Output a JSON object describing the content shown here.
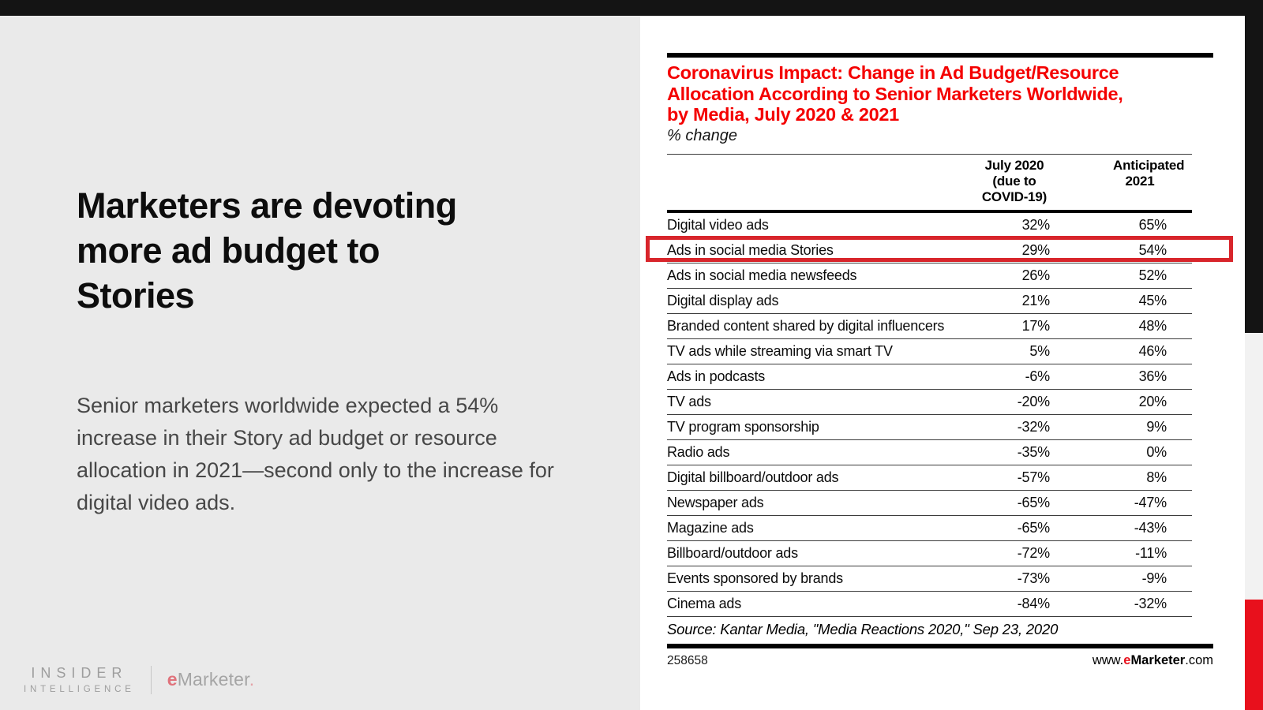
{
  "slide": {
    "headline": "Marketers are devoting\nmore ad budget to\nStories",
    "body": "Senior marketers worldwide expected a 54% increase in their Story ad budget or resource allocation in 2021—second only to the increase for digital video ads.",
    "logo": {
      "line1": "INSIDER",
      "line2": "INTELLIGENCE",
      "emarketer_e": "e",
      "emarketer_rest": "Marketer",
      "emarketer_period": "."
    }
  },
  "chart": {
    "title": "Coronavirus Impact: Change in Ad Budget/Resource\nAllocation According to Senior Marketers Worldwide,\nby Media, July 2020 & 2021",
    "subtitle": "% change",
    "header": {
      "col1": "July 2020\n(due to\nCOVID-19)",
      "col2": "Anticipated\n2021"
    },
    "source": "Source: Kantar Media, \"Media Reactions 2020,\" Sep 23, 2020",
    "chart_id": "258658",
    "site": {
      "www": "www.",
      "e": "e",
      "marketer": "Marketer",
      "com": ".com"
    },
    "accent_red": "#f40000",
    "highlight_red": "#d8252b"
  },
  "chart_data": {
    "type": "table",
    "title": "Coronavirus Impact: Change in Ad Budget/Resource Allocation According to Senior Marketers Worldwide, by Media, July 2020 & 2021",
    "subtitle": "% change",
    "unit": "% change",
    "columns": [
      "Media",
      "July 2020 (due to COVID-19)",
      "Anticipated 2021"
    ],
    "highlighted_row": "Ads in social media Stories",
    "rows": [
      {
        "label": "Digital video ads",
        "july_2020": "32%",
        "anticipated_2021": "65%",
        "highlight": false
      },
      {
        "label": "Ads in social media Stories",
        "july_2020": "29%",
        "anticipated_2021": "54%",
        "highlight": true
      },
      {
        "label": "Ads in social media newsfeeds",
        "july_2020": "26%",
        "anticipated_2021": "52%",
        "highlight": false
      },
      {
        "label": "Digital display ads",
        "july_2020": "21%",
        "anticipated_2021": "45%",
        "highlight": false
      },
      {
        "label": "Branded content shared by digital influencers",
        "july_2020": "17%",
        "anticipated_2021": "48%",
        "highlight": false
      },
      {
        "label": "TV ads while streaming via smart TV",
        "july_2020": "5%",
        "anticipated_2021": "46%",
        "highlight": false
      },
      {
        "label": "Ads in podcasts",
        "july_2020": "-6%",
        "anticipated_2021": "36%",
        "highlight": false
      },
      {
        "label": "TV ads",
        "july_2020": "-20%",
        "anticipated_2021": "20%",
        "highlight": false
      },
      {
        "label": "TV program sponsorship",
        "july_2020": "-32%",
        "anticipated_2021": "9%",
        "highlight": false
      },
      {
        "label": "Radio ads",
        "july_2020": "-35%",
        "anticipated_2021": "0%",
        "highlight": false
      },
      {
        "label": "Digital billboard/outdoor ads",
        "july_2020": "-57%",
        "anticipated_2021": "8%",
        "highlight": false
      },
      {
        "label": "Newspaper ads",
        "july_2020": "-65%",
        "anticipated_2021": "-47%",
        "highlight": false
      },
      {
        "label": "Magazine ads",
        "july_2020": "-65%",
        "anticipated_2021": "-43%",
        "highlight": false
      },
      {
        "label": "Billboard/outdoor ads",
        "july_2020": "-72%",
        "anticipated_2021": "-11%",
        "highlight": false
      },
      {
        "label": "Events sponsored by brands",
        "july_2020": "-73%",
        "anticipated_2021": "-9%",
        "highlight": false
      },
      {
        "label": "Cinema ads",
        "july_2020": "-84%",
        "anticipated_2021": "-32%",
        "highlight": false
      }
    ],
    "source": "Source: Kantar Media, \"Media Reactions 2020,\" Sep 23, 2020"
  }
}
